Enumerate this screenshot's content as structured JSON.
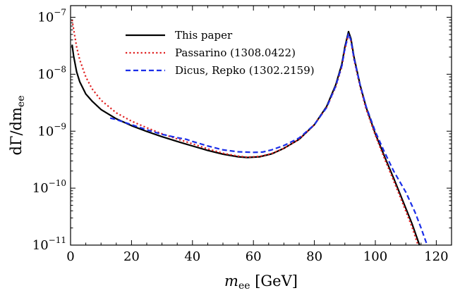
{
  "chart_data": {
    "type": "line",
    "title": "",
    "xlabel": "m_ee [GeV]",
    "xlabel_main": "m",
    "xlabel_sub": "ee",
    "xlabel_unit": " [GeV]",
    "ylabel": "dΓ/dm_ee",
    "ylabel_main": "dΓ/dm",
    "ylabel_sub": "ee",
    "xlim": [
      0,
      125
    ],
    "ylim": [
      1e-11,
      1.6e-07
    ],
    "yscale": "log",
    "grid": false,
    "legend_position": "top-left",
    "x_ticks": [
      0,
      20,
      40,
      60,
      80,
      100,
      120
    ],
    "x_tick_labels": [
      "0",
      "20",
      "40",
      "60",
      "80",
      "100",
      "120"
    ],
    "y_ticks": [
      {
        "value": 1e-11,
        "base": "10",
        "exp": "−11"
      },
      {
        "value": 1e-10,
        "base": "10",
        "exp": "−10"
      },
      {
        "value": 1e-09,
        "base": "10",
        "exp": "−9"
      },
      {
        "value": 1e-08,
        "base": "10",
        "exp": "−8"
      },
      {
        "value": 1e-07,
        "base": "10",
        "exp": "−7"
      }
    ],
    "series": [
      {
        "name": "This paper",
        "color": "#000000",
        "dash": "solid",
        "points": [
          [
            0.5,
            3.3e-08
          ],
          [
            1,
            2.1e-08
          ],
          [
            2,
            1.1e-08
          ],
          [
            3,
            7.4e-09
          ],
          [
            5,
            4.5e-09
          ],
          [
            7,
            3.4e-09
          ],
          [
            10,
            2.4e-09
          ],
          [
            15,
            1.65e-09
          ],
          [
            20,
            1.25e-09
          ],
          [
            25,
            9.9e-10
          ],
          [
            30,
            8e-10
          ],
          [
            35,
            6.6e-10
          ],
          [
            40,
            5.5e-10
          ],
          [
            45,
            4.6e-10
          ],
          [
            50,
            3.95e-10
          ],
          [
            55,
            3.55e-10
          ],
          [
            58,
            3.45e-10
          ],
          [
            62,
            3.55e-10
          ],
          [
            66,
            4e-10
          ],
          [
            70,
            5e-10
          ],
          [
            75,
            7.2e-10
          ],
          [
            80,
            1.3e-09
          ],
          [
            84,
            2.7e-09
          ],
          [
            87,
            6.5e-09
          ],
          [
            89,
            1.5e-08
          ],
          [
            90,
            3e-08
          ],
          [
            91.2,
            5.6e-08
          ],
          [
            92,
            4.2e-08
          ],
          [
            93,
            2e-08
          ],
          [
            95,
            6.5e-09
          ],
          [
            97,
            2.6e-09
          ],
          [
            100,
            9e-10
          ],
          [
            103,
            3.6e-10
          ],
          [
            106,
            1.5e-10
          ],
          [
            109,
            6e-11
          ],
          [
            112,
            2.4e-11
          ],
          [
            114.5,
            1e-11
          ]
        ]
      },
      {
        "name": "Passarino (1308.0422)",
        "color": "#e02020",
        "dash": "dotted",
        "points": [
          [
            0.5,
            9e-08
          ],
          [
            1,
            6.2e-08
          ],
          [
            2,
            3e-08
          ],
          [
            3,
            1.8e-08
          ],
          [
            5,
            9e-09
          ],
          [
            7,
            5.6e-09
          ],
          [
            10,
            3.5e-09
          ],
          [
            15,
            2.1e-09
          ],
          [
            20,
            1.5e-09
          ],
          [
            25,
            1.15e-09
          ],
          [
            30,
            9e-10
          ],
          [
            35,
            7.3e-10
          ],
          [
            40,
            6e-10
          ],
          [
            45,
            4.9e-10
          ],
          [
            50,
            4.1e-10
          ],
          [
            55,
            3.65e-10
          ],
          [
            58,
            3.5e-10
          ],
          [
            62,
            3.6e-10
          ],
          [
            66,
            4.05e-10
          ],
          [
            70,
            5e-10
          ],
          [
            75,
            7.2e-10
          ],
          [
            80,
            1.3e-09
          ],
          [
            84,
            2.6e-09
          ],
          [
            87,
            6e-09
          ],
          [
            89,
            1.35e-08
          ],
          [
            90,
            2.7e-08
          ],
          [
            91.2,
            5e-08
          ],
          [
            92,
            3.8e-08
          ],
          [
            93,
            1.8e-08
          ],
          [
            95,
            6e-09
          ],
          [
            97,
            2.4e-09
          ],
          [
            100,
            8.5e-10
          ],
          [
            103,
            3.3e-10
          ],
          [
            106,
            1.35e-10
          ],
          [
            109,
            5.4e-11
          ],
          [
            112,
            2.1e-11
          ],
          [
            114,
            1e-11
          ]
        ]
      },
      {
        "name": "Dicus, Repko (1302.2159)",
        "color": "#1a2ee8",
        "dash": "dashed",
        "points": [
          [
            13,
            1.7e-09
          ],
          [
            15,
            1.6e-09
          ],
          [
            20,
            1.3e-09
          ],
          [
            25,
            1.06e-09
          ],
          [
            30,
            8.8e-10
          ],
          [
            35,
            7.7e-10
          ],
          [
            38,
            7.2e-10
          ],
          [
            40,
            6.6e-10
          ],
          [
            45,
            5.5e-10
          ],
          [
            50,
            4.7e-10
          ],
          [
            55,
            4.35e-10
          ],
          [
            60,
            4.25e-10
          ],
          [
            63,
            4.3e-10
          ],
          [
            66,
            4.7e-10
          ],
          [
            70,
            5.6e-10
          ],
          [
            75,
            7.6e-10
          ],
          [
            80,
            1.3e-09
          ],
          [
            84,
            2.6e-09
          ],
          [
            87,
            6.2e-09
          ],
          [
            89,
            1.4e-08
          ],
          [
            90,
            2.8e-08
          ],
          [
            91.2,
            5.2e-08
          ],
          [
            92,
            3.9e-08
          ],
          [
            93,
            1.9e-08
          ],
          [
            95,
            6.5e-09
          ],
          [
            97,
            2.7e-09
          ],
          [
            100,
            9.8e-10
          ],
          [
            103,
            4.3e-10
          ],
          [
            106,
            2e-10
          ],
          [
            110,
            8.5e-11
          ],
          [
            113,
            3.8e-11
          ],
          [
            115,
            2e-11
          ],
          [
            117,
            1e-11
          ]
        ]
      }
    ]
  }
}
